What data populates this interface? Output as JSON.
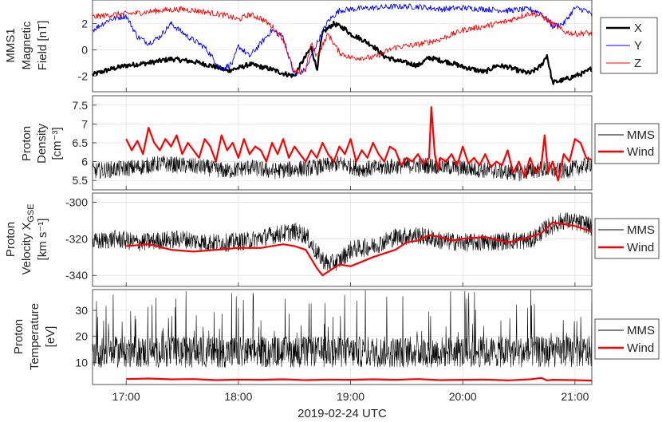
{
  "chart_data": [
    {
      "type": "line",
      "panel": "magnetic-field",
      "ylabel": [
        "MMS1",
        "Magnetic",
        "Field [nT]"
      ],
      "ylim": [
        -3.2,
        3.8
      ],
      "yticks": [
        "-2",
        "0",
        "2"
      ],
      "ytick_values": [
        -2,
        0,
        2
      ],
      "legend": "right",
      "grid": true,
      "series": [
        {
          "name": "X",
          "color": "#000000",
          "x": [
            16.7,
            16.85,
            17.0,
            17.2,
            17.4,
            17.6,
            17.8,
            17.9,
            18.0,
            18.1,
            18.2,
            18.3,
            18.4,
            18.5,
            18.55,
            18.6,
            18.65,
            18.7,
            18.75,
            18.85,
            18.95,
            19.0,
            19.1,
            19.2,
            19.3,
            19.4,
            19.5,
            19.6,
            19.7,
            19.8,
            19.9,
            20.0,
            20.1,
            20.2,
            20.3,
            20.4,
            20.5,
            20.6,
            20.7,
            20.75,
            20.8,
            20.9,
            21.0,
            21.1,
            21.15
          ],
          "y": [
            -1.9,
            -1.5,
            -1.2,
            -1.0,
            -0.7,
            -0.9,
            -1.3,
            -1.6,
            -1.4,
            -1.1,
            -1.3,
            -1.5,
            -1.8,
            -2.0,
            -1.2,
            -0.5,
            0.2,
            -1.5,
            1.3,
            2.0,
            1.6,
            1.2,
            0.8,
            0.3,
            -0.5,
            -0.8,
            -1.0,
            -1.2,
            -0.6,
            -0.8,
            -1.0,
            -1.3,
            -1.5,
            -1.7,
            -1.2,
            -1.3,
            -1.6,
            -1.8,
            -1.2,
            -0.4,
            -2.5,
            -2.3,
            -2.0,
            -1.7,
            -1.4
          ]
        },
        {
          "name": "Y",
          "color": "#0000ff",
          "x": [
            16.7,
            16.85,
            17.0,
            17.1,
            17.2,
            17.3,
            17.4,
            17.55,
            17.7,
            17.85,
            17.95,
            18.0,
            18.1,
            18.2,
            18.3,
            18.4,
            18.5,
            18.6,
            18.7,
            18.8,
            18.9,
            19.0,
            19.2,
            19.4,
            19.6,
            19.8,
            20.0,
            20.2,
            20.4,
            20.6,
            20.7,
            20.8,
            20.9,
            21.0,
            21.1,
            21.15
          ],
          "y": [
            1.5,
            2.3,
            2.6,
            1.0,
            0.5,
            1.0,
            2.0,
            1.0,
            0.2,
            -1.5,
            -1.0,
            0.3,
            -0.5,
            0.5,
            1.5,
            1.0,
            -2.0,
            -1.5,
            0.5,
            2.2,
            3.0,
            3.1,
            3.2,
            3.3,
            3.3,
            3.1,
            3.2,
            3.1,
            3.0,
            3.1,
            2.8,
            1.8,
            2.0,
            3.2,
            3.0,
            2.6
          ]
        },
        {
          "name": "Z",
          "color": "#ff0000",
          "x": [
            16.7,
            16.9,
            17.1,
            17.3,
            17.5,
            17.7,
            17.9,
            18.0,
            18.1,
            18.2,
            18.3,
            18.4,
            18.5,
            18.6,
            18.65,
            18.7,
            18.8,
            18.9,
            19.0,
            19.2,
            19.4,
            19.6,
            19.8,
            20.0,
            20.2,
            20.4,
            20.6,
            20.7,
            20.8,
            20.9,
            21.0,
            21.1,
            21.15
          ],
          "y": [
            2.5,
            2.7,
            2.8,
            3.0,
            3.1,
            2.9,
            2.6,
            2.3,
            2.7,
            2.4,
            1.8,
            0.8,
            -1.8,
            -1.5,
            0.5,
            -0.5,
            1.2,
            -0.2,
            -0.6,
            -0.6,
            0.2,
            0.4,
            0.8,
            1.5,
            1.8,
            2.2,
            2.8,
            2.6,
            2.0,
            1.4,
            1.2,
            1.3,
            1.2
          ]
        }
      ]
    },
    {
      "type": "line",
      "panel": "proton-density",
      "ylabel": [
        "Proton",
        "Density",
        "[cm⁻³]"
      ],
      "ylim": [
        5.25,
        7.75
      ],
      "yticks": [
        "5.5",
        "6",
        "6.5",
        "7",
        "7.5"
      ],
      "ytick_values": [
        5.5,
        6,
        6.5,
        7,
        7.5
      ],
      "legend": "right",
      "grid": true,
      "series": [
        {
          "name": "MMS",
          "color": "#000000",
          "x": [
            16.7,
            16.9,
            17.1,
            17.3,
            17.5,
            17.7,
            17.9,
            18.1,
            18.3,
            18.5,
            18.7,
            18.9,
            19.1,
            19.3,
            19.5,
            19.7,
            19.9,
            20.1,
            20.3,
            20.5,
            20.7,
            20.9,
            21.1,
            21.15
          ],
          "y": [
            5.75,
            5.8,
            5.85,
            5.95,
            5.9,
            5.85,
            5.75,
            5.85,
            5.75,
            5.8,
            5.85,
            5.95,
            5.8,
            5.85,
            5.9,
            5.9,
            5.85,
            5.8,
            5.75,
            5.7,
            5.8,
            5.75,
            5.9,
            5.95
          ],
          "noise": 0.22
        },
        {
          "name": "Wind",
          "color": "#ff0000",
          "x": [
            17.0,
            17.05,
            17.1,
            17.15,
            17.2,
            17.25,
            17.3,
            17.35,
            17.4,
            17.45,
            17.5,
            17.55,
            17.6,
            17.65,
            17.7,
            17.75,
            17.8,
            17.85,
            17.9,
            17.95,
            18.0,
            18.05,
            18.1,
            18.15,
            18.2,
            18.25,
            18.3,
            18.35,
            18.4,
            18.45,
            18.5,
            18.55,
            18.6,
            18.65,
            18.7,
            18.75,
            18.8,
            18.85,
            18.9,
            18.95,
            19.0,
            19.05,
            19.1,
            19.15,
            19.2,
            19.25,
            19.3,
            19.35,
            19.4,
            19.45,
            19.5,
            19.55,
            19.6,
            19.65,
            19.7,
            19.72,
            19.75,
            19.78,
            19.8,
            19.85,
            19.9,
            19.95,
            20.0,
            20.05,
            20.1,
            20.15,
            20.2,
            20.25,
            20.3,
            20.35,
            20.4,
            20.45,
            20.5,
            20.55,
            20.6,
            20.65,
            20.7,
            20.73,
            20.76,
            20.8,
            20.85,
            20.9,
            20.95,
            21.0,
            21.05,
            21.1,
            21.15
          ],
          "y": [
            6.6,
            6.3,
            6.55,
            6.2,
            6.9,
            6.5,
            6.3,
            6.6,
            6.4,
            6.7,
            6.2,
            6.5,
            6.3,
            6.1,
            6.6,
            6.4,
            6.0,
            6.7,
            6.3,
            6.5,
            6.1,
            6.6,
            6.2,
            6.4,
            6.3,
            6.0,
            6.5,
            6.2,
            6.6,
            6.1,
            6.4,
            6.2,
            6.0,
            6.3,
            6.1,
            6.5,
            6.2,
            6.0,
            6.4,
            6.2,
            6.6,
            6.0,
            6.3,
            6.1,
            6.5,
            6.2,
            6.0,
            6.4,
            6.3,
            5.9,
            6.1,
            6.0,
            6.2,
            5.95,
            6.1,
            7.45,
            6.2,
            5.8,
            6.1,
            6.0,
            6.2,
            5.9,
            6.4,
            5.95,
            6.1,
            5.9,
            6.2,
            5.85,
            6.0,
            5.9,
            6.3,
            5.7,
            6.0,
            5.6,
            6.1,
            5.7,
            5.9,
            6.7,
            5.7,
            6.0,
            5.5,
            6.2,
            6.0,
            6.6,
            6.5,
            6.1,
            6.05
          ]
        }
      ]
    },
    {
      "type": "line",
      "panel": "proton-velocity",
      "ylabel": [
        "Proton",
        "Velocity X_GSE",
        "[km s⁻¹]"
      ],
      "ylim": [
        -346,
        -295
      ],
      "yticks": [
        "-340",
        "-320",
        "-300"
      ],
      "ytick_values": [
        -340,
        -320,
        -300
      ],
      "legend": "right",
      "grid": true,
      "series": [
        {
          "name": "MMS",
          "color": "#000000",
          "x": [
            16.7,
            16.9,
            17.1,
            17.3,
            17.5,
            17.7,
            17.9,
            18.1,
            18.3,
            18.5,
            18.6,
            18.7,
            18.8,
            18.9,
            19.0,
            19.2,
            19.4,
            19.6,
            19.8,
            20.0,
            20.2,
            20.4,
            20.6,
            20.75,
            20.9,
            21.1,
            21.15
          ],
          "y": [
            -322,
            -320,
            -322,
            -321,
            -320,
            -322,
            -322,
            -321,
            -318,
            -316,
            -318,
            -328,
            -334,
            -332,
            -326,
            -324,
            -319,
            -318,
            -321,
            -322,
            -322,
            -321,
            -321,
            -314,
            -310,
            -312,
            -314
          ],
          "noise": 5
        },
        {
          "name": "Wind",
          "color": "#ff0000",
          "x": [
            17.0,
            17.2,
            17.4,
            17.6,
            17.8,
            18.0,
            18.2,
            18.4,
            18.5,
            18.6,
            18.7,
            18.75,
            18.8,
            18.9,
            19.0,
            19.2,
            19.4,
            19.5,
            19.6,
            19.7,
            19.8,
            19.9,
            20.0,
            20.2,
            20.4,
            20.6,
            20.7,
            20.8,
            20.9,
            21.0,
            21.1,
            21.15
          ],
          "y": [
            -324,
            -323,
            -326,
            -327,
            -326,
            -325,
            -325,
            -323,
            -324,
            -326,
            -336,
            -340,
            -338,
            -334,
            -335,
            -330,
            -326,
            -322,
            -321,
            -318,
            -319,
            -321,
            -320,
            -319,
            -322,
            -319,
            -317,
            -311,
            -312,
            -313,
            -315,
            -316
          ]
        }
      ]
    },
    {
      "type": "line",
      "panel": "proton-temperature",
      "ylabel": [
        "Proton",
        "Temperature",
        "[eV]"
      ],
      "ylim": [
        1.5,
        38
      ],
      "yticks": [
        "10",
        "20",
        "30"
      ],
      "ytick_values": [
        10,
        20,
        30
      ],
      "xlabel": "2019-02-24 UTC",
      "xticks": [
        "17:00",
        "18:00",
        "19:00",
        "20:00",
        "21:00"
      ],
      "xtick_values": [
        17,
        18,
        19,
        20,
        21
      ],
      "xlim": [
        16.7,
        21.15
      ],
      "legend": "right",
      "grid": true,
      "series": [
        {
          "name": "MMS",
          "color": "#000000",
          "x": [
            16.7,
            17.0,
            17.5,
            18.0,
            18.5,
            19.0,
            19.5,
            20.0,
            20.5,
            21.0,
            21.15
          ],
          "y": [
            14,
            14,
            14,
            14,
            14,
            14,
            14,
            14,
            14,
            14,
            14
          ],
          "noise": 6
        },
        {
          "name": "Wind",
          "color": "#ff0000",
          "x": [
            17.0,
            17.2,
            17.4,
            17.6,
            17.8,
            18.0,
            18.2,
            18.4,
            18.6,
            18.8,
            19.0,
            19.2,
            19.4,
            19.6,
            19.8,
            20.0,
            20.2,
            20.4,
            20.6,
            20.7,
            20.75,
            20.8,
            21.0,
            21.15
          ],
          "y": [
            3.6,
            3.8,
            3.5,
            3.6,
            3.2,
            3.4,
            3.3,
            3.5,
            3.2,
            3.4,
            3.3,
            3.5,
            3.3,
            3.6,
            3.2,
            3.3,
            3.4,
            3.1,
            3.5,
            4.0,
            3.1,
            3.3,
            3.2,
            3.0
          ]
        }
      ]
    }
  ]
}
